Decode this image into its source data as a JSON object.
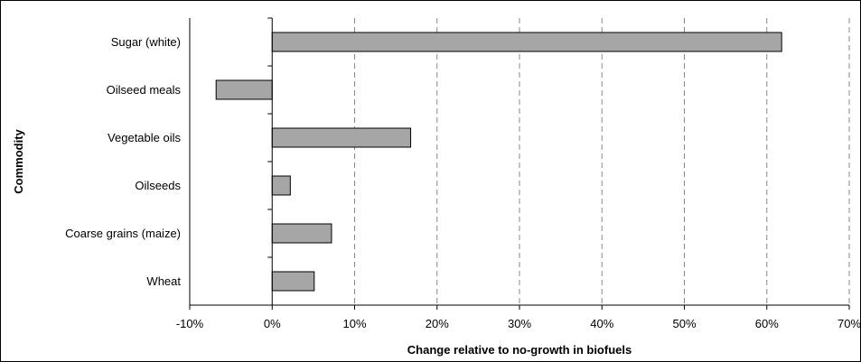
{
  "chart_data": {
    "type": "bar",
    "orientation": "horizontal",
    "title": "",
    "xlabel": "Change relative to no-growth in biofuels",
    "ylabel": "Commodity",
    "categories": [
      "Sugar (white)",
      "Oilseed meals",
      "Vegetable oils",
      "Oilseeds",
      "Coarse grains (maize)",
      "Wheat"
    ],
    "values": [
      61.8,
      -6.8,
      16.8,
      2.2,
      7.2,
      5.1
    ],
    "xlim": [
      -10,
      70
    ],
    "x_ticks": [
      -10,
      0,
      10,
      20,
      30,
      40,
      50,
      60,
      70
    ],
    "x_tick_labels": [
      "-10%",
      "0%",
      "10%",
      "20%",
      "30%",
      "40%",
      "50%",
      "60%",
      "70%"
    ],
    "grid": "vertical dashed",
    "bar_color": "#a6a6a6",
    "bar_edge_color": "#000000"
  }
}
